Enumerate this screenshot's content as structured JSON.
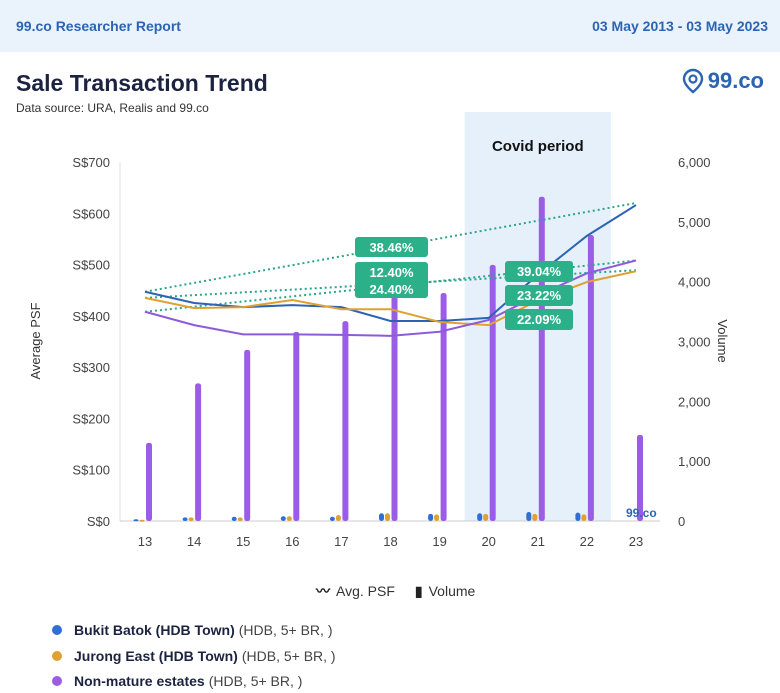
{
  "header": {
    "left": "99.co Researcher Report",
    "right": "03 May 2013 - 03 May 2023"
  },
  "title": "Sale Transaction Trend",
  "source": "Data source: URA, Realis and 99.co",
  "logo_text": "99.co",
  "watermark": "99.co",
  "legend": {
    "psf": "Avg. PSF",
    "volume": "Volume"
  },
  "series_list": [
    {
      "name": "Bukit Batok (HDB Town)",
      "detail": "(HDB, 5+ BR, )",
      "color": "#2f6fd6"
    },
    {
      "name": "Jurong East (HDB Town)",
      "detail": "(HDB, 5+ BR, )",
      "color": "#e0a133"
    },
    {
      "name": "Non-mature estates",
      "detail": "(HDB, 5+ BR, )",
      "color": "#9b5de5"
    }
  ],
  "chart_data": {
    "type": "bar+line",
    "title": "Sale Transaction Trend",
    "x": [
      "13",
      "14",
      "15",
      "16",
      "17",
      "18",
      "19",
      "20",
      "21",
      "22",
      "23"
    ],
    "ylabel": "Average PSF",
    "y2label": "Volume",
    "ylim": [
      0,
      700
    ],
    "y2lim": [
      0,
      6000
    ],
    "yticks": [
      "S$0",
      "S$100",
      "S$200",
      "S$300",
      "S$400",
      "S$500",
      "S$600",
      "S$700"
    ],
    "y2ticks": [
      "0",
      "1,000",
      "2,000",
      "3,000",
      "4,000",
      "5,000",
      "6,000"
    ],
    "annotation": "Covid period",
    "covid_range": [
      "20",
      "22"
    ],
    "psf_series": [
      {
        "name": "Bukit Batok (HDB Town)",
        "color": "#2c64b4",
        "values": [
          447,
          425,
          417,
          421,
          417,
          390,
          390,
          396,
          480,
          556,
          616
        ]
      },
      {
        "name": "Jurong East (HDB Town)",
        "color": "#e0a133",
        "values": [
          435,
          415,
          417,
          431,
          413,
          413,
          388,
          382,
          430,
          466,
          487
        ]
      },
      {
        "name": "Non-mature estates",
        "color": "#8e5bd8",
        "values": [
          408,
          382,
          364,
          364,
          363,
          361,
          369,
          392,
          440,
          483,
          508
        ]
      }
    ],
    "volume_series": [
      {
        "name": "Bukit Batok (HDB Town)",
        "color": "#2f6fd6",
        "values": [
          30,
          60,
          70,
          80,
          70,
          130,
          120,
          130,
          150,
          140,
          0
        ]
      },
      {
        "name": "Jurong East (HDB Town)",
        "color": "#e0a133",
        "values": [
          20,
          60,
          60,
          80,
          100,
          130,
          110,
          120,
          120,
          110,
          0
        ]
      },
      {
        "name": "Non-mature estates",
        "color": "#9b5de5",
        "values": [
          1305,
          2300,
          2860,
          3160,
          3340,
          4000,
          3810,
          4280,
          5420,
          4780,
          1440
        ]
      }
    ],
    "trend_lines": [
      {
        "color": "#2aa58a",
        "from": 447,
        "to": 620
      },
      {
        "color": "#2aa58a",
        "from": 435,
        "to": 489
      },
      {
        "color": "#2aa58a",
        "from": 408,
        "to": 508
      }
    ],
    "labels_all": [
      "38.46%",
      "12.40%",
      "24.40%"
    ],
    "labels_covid": [
      "39.04%",
      "23.22%",
      "22.09%"
    ]
  }
}
